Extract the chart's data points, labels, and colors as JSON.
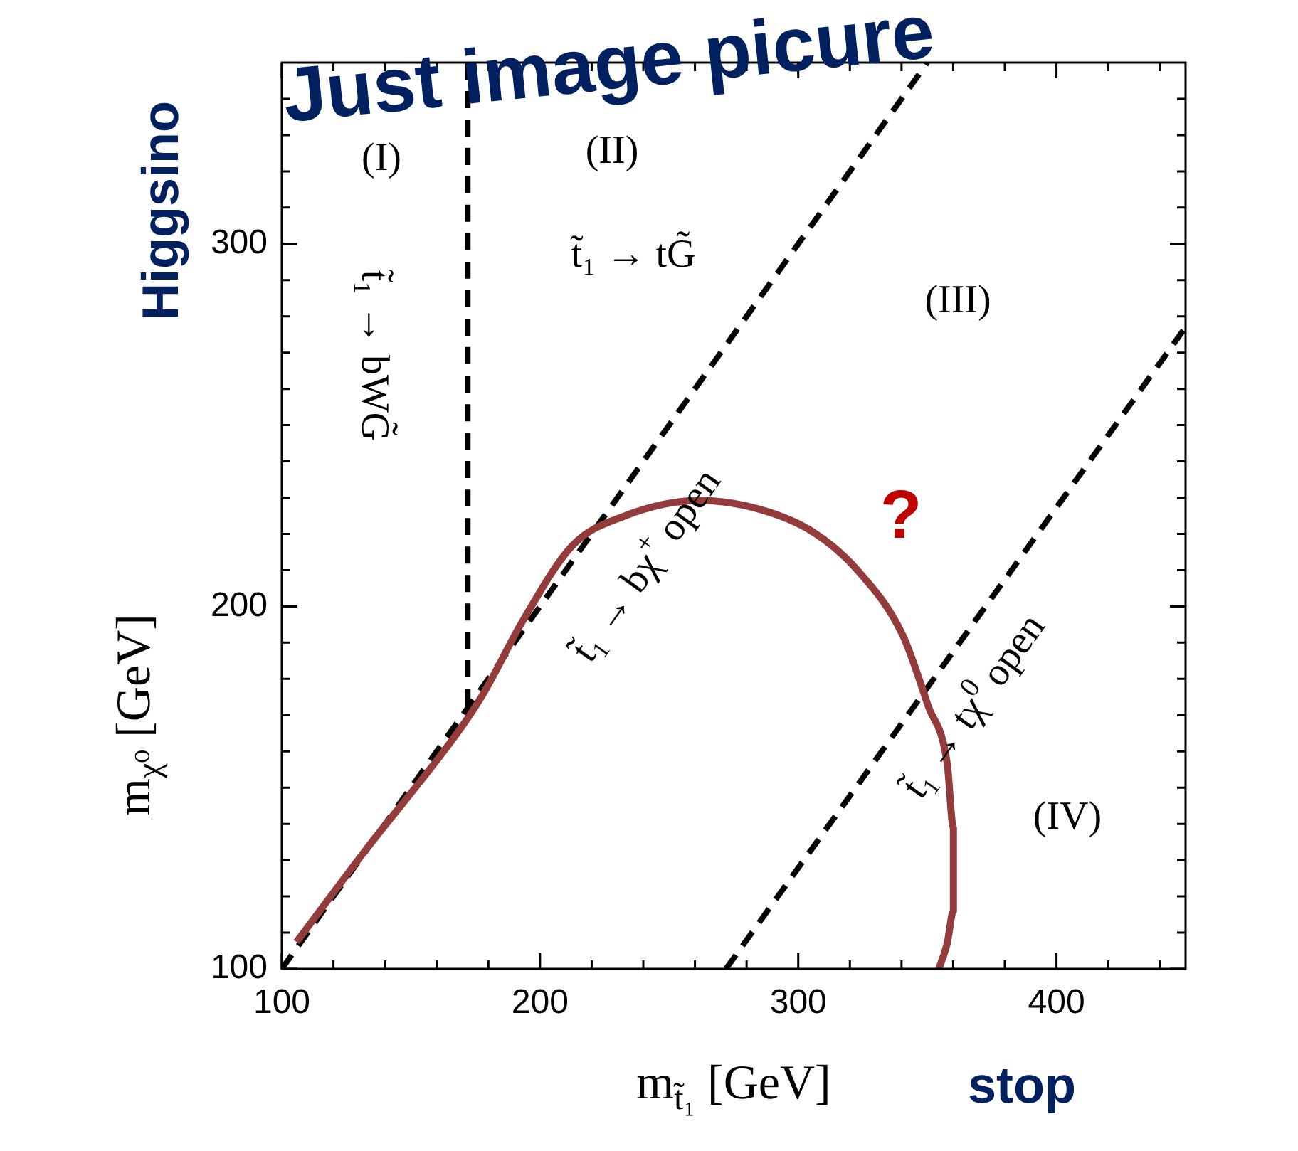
{
  "chart_data": {
    "type": "line",
    "xlabel": "m$_{t̃₁}$ [GeV]",
    "ylabel": "m$_{χ⁰}$ [GeV]",
    "xlim": [
      100,
      450
    ],
    "ylim": [
      100,
      350
    ],
    "xticks": [
      100,
      {
        "value": 120,
        "label": null
      },
      {
        "value": 140,
        "label": null
      },
      {
        "value": 160,
        "label": null
      },
      {
        "value": 180,
        "label": null
      },
      200,
      {
        "value": 220,
        "label": null
      },
      {
        "value": 240,
        "label": null
      },
      {
        "value": 260,
        "label": null
      },
      {
        "value": 280,
        "label": null
      },
      300,
      {
        "value": 320,
        "label": null
      },
      {
        "value": 340,
        "label": null
      },
      {
        "value": 360,
        "label": null
      },
      {
        "value": 380,
        "label": null
      },
      400,
      {
        "value": 420,
        "label": null
      },
      {
        "value": 440,
        "label": null
      }
    ],
    "yticks": [
      100,
      {
        "value": 110,
        "label": null
      },
      {
        "value": 120,
        "label": null
      },
      {
        "value": 130,
        "label": null
      },
      {
        "value": 140,
        "label": null
      },
      {
        "value": 150,
        "label": null
      },
      {
        "value": 160,
        "label": null
      },
      {
        "value": 170,
        "label": null
      },
      {
        "value": 180,
        "label": null
      },
      {
        "value": 190,
        "label": null
      },
      200,
      {
        "value": 210,
        "label": null
      },
      {
        "value": 220,
        "label": null
      },
      {
        "value": 230,
        "label": null
      },
      {
        "value": 240,
        "label": null
      },
      {
        "value": 250,
        "label": null
      },
      {
        "value": 260,
        "label": null
      },
      {
        "value": 270,
        "label": null
      },
      {
        "value": 280,
        "label": null
      },
      {
        "value": 290,
        "label": null
      },
      300,
      {
        "value": 310,
        "label": null
      },
      {
        "value": 320,
        "label": null
      },
      {
        "value": 330,
        "label": null
      },
      {
        "value": 340,
        "label": null
      }
    ],
    "legend": false,
    "marker": "none",
    "series": [
      {
        "color": "#943b3b",
        "line_style": "solid",
        "x": [
          105.7,
          131.5,
          168.4,
          178.2,
          193,
          212.6,
          232.3,
          261.8,
          286.4,
          306,
          323.3,
          340.5,
          350.3,
          357.7,
          360.1,
          360.1,
          357.7,
          354.5
        ],
        "values": [
          107.4,
          131.9,
          165.5,
          176.1,
          195.6,
          216.8,
          224.8,
          229.2,
          226.5,
          220.4,
          209.7,
          192,
          172.6,
          156.6,
          138.9,
          115.9,
          107.1,
          100
        ]
      },
      {
        "color": "#000000",
        "line_style": "dashed",
        "x": [
          172,
          172
        ],
        "values": [
          350,
          172
        ]
      },
      {
        "color": "#000000",
        "line_style": "dashed",
        "x": [
          100,
          350
        ],
        "values": [
          100,
          350
        ]
      },
      {
        "color": "#000000",
        "line_style": "dashed",
        "x": [
          272,
          450
        ],
        "values": [
          100,
          277
        ]
      }
    ],
    "annotations": [
      "(I)",
      "(II)",
      "(III)",
      "(IV)",
      "t̃₁ → tG̃",
      "t̃₁ → bWG̃",
      "t̃₁ → bχ$^{+}$ open",
      "t̃₁ → tχ$^{0}$ open",
      "?",
      "Just image picure",
      "Higgsino",
      "stop"
    ]
  }
}
